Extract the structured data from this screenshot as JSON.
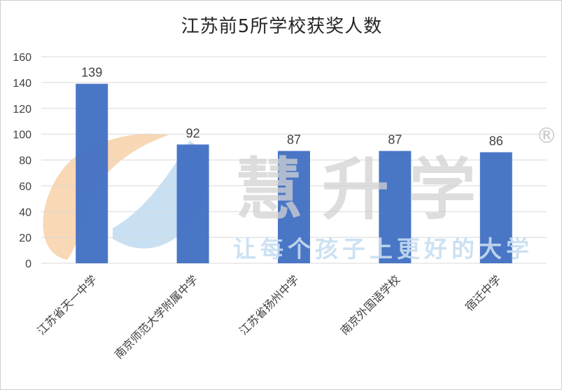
{
  "chart_data": {
    "type": "bar",
    "title": "江苏前5所学校获奖人数",
    "categories": [
      "江苏省天一中学",
      "南京师范大学附属中学",
      "江苏省扬州中学",
      "南京外国语学校",
      "宿迁中学"
    ],
    "values": [
      139,
      92,
      87,
      87,
      86
    ],
    "ylim": [
      0,
      160
    ],
    "ytick_step": 20,
    "grid": true,
    "legend": "none",
    "bar_color": "#4472c4",
    "grid_color": "#d9d9d9",
    "xlabel": "",
    "ylabel": ""
  },
  "watermark": {
    "brand": "慧升学",
    "registered": "®",
    "slogan": "让每个孩子上更好的大学"
  }
}
